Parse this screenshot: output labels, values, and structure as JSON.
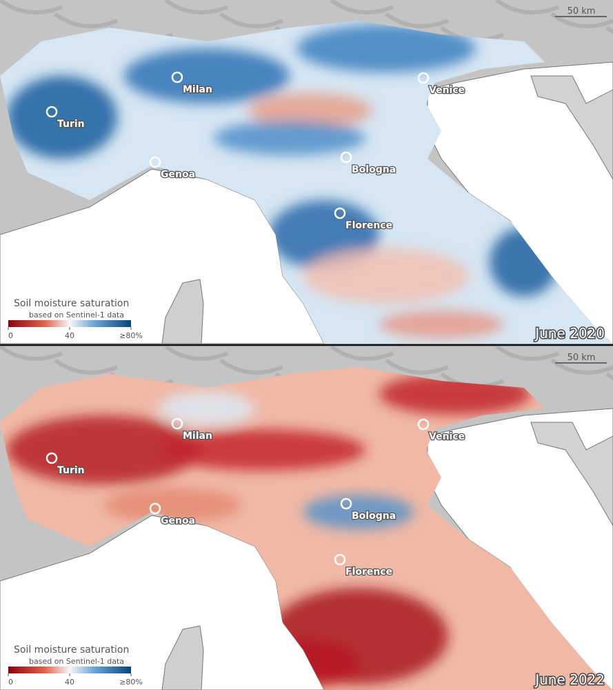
{
  "panels": [
    {
      "date": "June 2020",
      "scale_bar": "50 km",
      "legend": {
        "title": "Soil moisture saturation",
        "subtitle": "based on Sentinel-1 data",
        "ticks": [
          0,
          40,
          {
            "value": 80,
            "label": "≥80%"
          }
        ]
      },
      "cities": [
        "Milan",
        "Venice",
        "Turin",
        "Genoa",
        "Bologna",
        "Florence"
      ]
    },
    {
      "date": "June 2022",
      "scale_bar": "50 km",
      "legend": {
        "title": "Soil moisture saturation",
        "subtitle": "based on Sentinel-1 data",
        "ticks": [
          0,
          40,
          {
            "value": 80,
            "label": "≥80%"
          }
        ]
      },
      "cities": [
        "Milan",
        "Venice",
        "Turin",
        "Genoa",
        "Bologna",
        "Florence"
      ]
    }
  ]
}
